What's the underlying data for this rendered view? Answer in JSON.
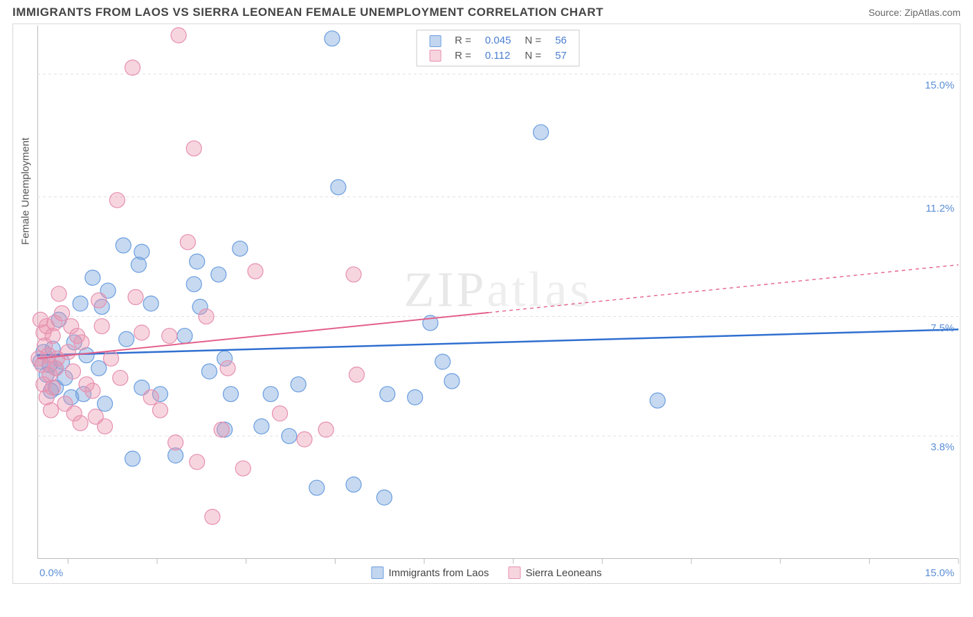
{
  "header": {
    "title": "IMMIGRANTS FROM LAOS VS SIERRA LEONEAN FEMALE UNEMPLOYMENT CORRELATION CHART",
    "source_label": "Source: ZipAtlas.com"
  },
  "chart": {
    "type": "scatter",
    "y_axis_label": "Female Unemployment",
    "watermark": "ZIPatlas",
    "background_color": "#ffffff",
    "grid_color": "#e0e0e0",
    "x_min": 0.0,
    "x_max": 15.0,
    "y_min": 0.0,
    "y_max": 16.5,
    "x_tick_labels": {
      "left": "0.0%",
      "right": "15.0%"
    },
    "x_ticks": [
      0.5,
      1.95,
      3.4,
      4.85,
      6.3,
      7.75,
      9.2,
      10.65,
      12.1,
      13.55,
      15.0
    ],
    "y_grid": [
      {
        "y": 3.8,
        "label": "3.8%"
      },
      {
        "y": 7.5,
        "label": "7.5%"
      },
      {
        "y": 11.2,
        "label": "11.2%"
      },
      {
        "y": 15.0,
        "label": "15.0%"
      }
    ],
    "legend_top": [
      {
        "swatch_fill": "rgba(120,165,220,0.45)",
        "swatch_border": "#6a9de0",
        "r_label": "R =",
        "r": "0.045",
        "n_label": "N =",
        "n": "56"
      },
      {
        "swatch_fill": "rgba(235,150,175,0.4)",
        "swatch_border": "#e68fb0",
        "r_label": "R =",
        "r": "0.112",
        "n_label": "N =",
        "n": "57"
      }
    ],
    "legend_bottom": [
      {
        "swatch": "blue",
        "label": "Immigrants from Laos"
      },
      {
        "swatch": "pink",
        "label": "Sierra Leoneans"
      }
    ],
    "series": [
      {
        "name": "Immigrants from Laos",
        "marker_color": "rgba(120,165,220,0.42)",
        "marker_stroke": "#6a9de0",
        "marker_radius": 11,
        "trend": {
          "x1": 0.0,
          "y1": 6.3,
          "x2": 15.0,
          "y2": 7.1,
          "color": "#2f6fd0",
          "width": 2.5,
          "dash": "none",
          "solid_extent": 1.0
        },
        "points": [
          [
            0.05,
            6.1
          ],
          [
            0.1,
            6.4
          ],
          [
            0.15,
            5.7
          ],
          [
            0.2,
            6.0
          ],
          [
            0.22,
            5.2
          ],
          [
            0.25,
            6.5
          ],
          [
            0.3,
            5.9
          ],
          [
            0.35,
            7.4
          ],
          [
            0.3,
            5.3
          ],
          [
            0.4,
            6.1
          ],
          [
            0.45,
            5.6
          ],
          [
            0.55,
            5.0
          ],
          [
            0.6,
            6.7
          ],
          [
            0.7,
            7.9
          ],
          [
            0.75,
            5.1
          ],
          [
            0.8,
            6.3
          ],
          [
            0.9,
            8.7
          ],
          [
            1.0,
            5.9
          ],
          [
            1.05,
            7.8
          ],
          [
            1.1,
            4.8
          ],
          [
            1.15,
            8.3
          ],
          [
            1.4,
            9.7
          ],
          [
            1.45,
            6.8
          ],
          [
            1.55,
            3.1
          ],
          [
            1.65,
            9.1
          ],
          [
            1.7,
            5.3
          ],
          [
            1.7,
            9.5
          ],
          [
            1.85,
            7.9
          ],
          [
            2.0,
            5.1
          ],
          [
            2.25,
            3.2
          ],
          [
            2.4,
            6.9
          ],
          [
            2.55,
            8.5
          ],
          [
            2.6,
            9.2
          ],
          [
            2.65,
            7.8
          ],
          [
            2.8,
            5.8
          ],
          [
            2.95,
            8.8
          ],
          [
            3.05,
            6.2
          ],
          [
            3.05,
            4.0
          ],
          [
            3.15,
            5.1
          ],
          [
            3.3,
            9.6
          ],
          [
            3.65,
            4.1
          ],
          [
            3.8,
            5.1
          ],
          [
            4.1,
            3.8
          ],
          [
            4.25,
            5.4
          ],
          [
            4.55,
            2.2
          ],
          [
            4.8,
            16.1
          ],
          [
            4.9,
            11.5
          ],
          [
            5.15,
            2.3
          ],
          [
            5.65,
            1.9
          ],
          [
            5.7,
            5.1
          ],
          [
            6.15,
            5.0
          ],
          [
            6.4,
            7.3
          ],
          [
            6.6,
            6.1
          ],
          [
            6.75,
            5.5
          ],
          [
            8.2,
            13.2
          ],
          [
            10.1,
            4.9
          ]
        ]
      },
      {
        "name": "Sierra Leoneans",
        "marker_color": "rgba(235,150,175,0.40)",
        "marker_stroke": "#e68fb0",
        "marker_radius": 11,
        "trend": {
          "x1": 0.0,
          "y1": 6.2,
          "x2": 15.0,
          "y2": 9.1,
          "color": "#e35f8a",
          "width": 2,
          "dash": "5,5",
          "solid_extent": 0.49
        },
        "points": [
          [
            0.02,
            6.2
          ],
          [
            0.05,
            7.4
          ],
          [
            0.08,
            6.0
          ],
          [
            0.1,
            5.4
          ],
          [
            0.1,
            7.0
          ],
          [
            0.12,
            6.6
          ],
          [
            0.15,
            5.0
          ],
          [
            0.15,
            7.2
          ],
          [
            0.18,
            6.3
          ],
          [
            0.2,
            5.7
          ],
          [
            0.22,
            4.6
          ],
          [
            0.25,
            6.9
          ],
          [
            0.25,
            5.3
          ],
          [
            0.28,
            7.3
          ],
          [
            0.3,
            5.9
          ],
          [
            0.32,
            6.2
          ],
          [
            0.4,
            7.6
          ],
          [
            0.45,
            4.8
          ],
          [
            0.5,
            6.4
          ],
          [
            0.55,
            7.2
          ],
          [
            0.58,
            5.8
          ],
          [
            0.65,
            6.9
          ],
          [
            0.7,
            4.2
          ],
          [
            0.72,
            6.7
          ],
          [
            0.9,
            5.2
          ],
          [
            0.95,
            4.4
          ],
          [
            1.0,
            8.0
          ],
          [
            1.05,
            7.2
          ],
          [
            1.1,
            4.1
          ],
          [
            1.2,
            6.2
          ],
          [
            1.3,
            11.1
          ],
          [
            1.35,
            5.6
          ],
          [
            1.55,
            15.2
          ],
          [
            1.6,
            8.1
          ],
          [
            1.7,
            7.0
          ],
          [
            1.85,
            5.0
          ],
          [
            2.0,
            4.6
          ],
          [
            2.15,
            6.9
          ],
          [
            2.25,
            3.6
          ],
          [
            2.3,
            16.2
          ],
          [
            2.45,
            9.8
          ],
          [
            2.55,
            12.7
          ],
          [
            2.6,
            3.0
          ],
          [
            2.75,
            7.5
          ],
          [
            2.85,
            1.3
          ],
          [
            3.0,
            4.0
          ],
          [
            3.1,
            5.9
          ],
          [
            3.35,
            2.8
          ],
          [
            3.55,
            8.9
          ],
          [
            3.95,
            4.5
          ],
          [
            4.35,
            3.7
          ],
          [
            4.7,
            4.0
          ],
          [
            5.15,
            8.8
          ],
          [
            5.2,
            5.7
          ],
          [
            0.35,
            8.2
          ],
          [
            0.6,
            4.5
          ],
          [
            0.8,
            5.4
          ]
        ]
      }
    ]
  }
}
